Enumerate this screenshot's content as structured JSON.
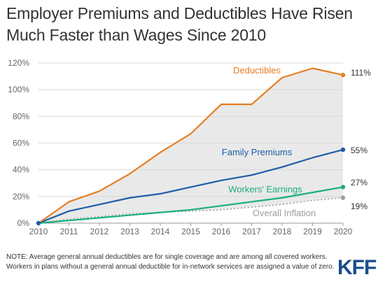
{
  "title": "Employer Premiums and Deductibles Have Risen Much Faster than Wages Since 2010",
  "note": "NOTE: Average general annual deductibles are for single coverage and are among all covered workers. Workers in plans without a general annual deductible for in-network services are assigned a value of zero.",
  "logo_text": "KFF",
  "colors": {
    "deductibles": "#e67e22",
    "family_premiums": "#1f5ea8",
    "workers_earnings": "#1aae7e",
    "overall_inflation": "#9e9e9e",
    "shade": "#e9e9e9",
    "grid": "#d9d9d9"
  },
  "chart_data": {
    "type": "line",
    "title": "",
    "xlabel": "",
    "ylabel": "",
    "x": [
      2010,
      2011,
      2012,
      2013,
      2014,
      2015,
      2016,
      2017,
      2018,
      2019,
      2020
    ],
    "ylim": [
      0,
      120
    ],
    "yticks": [
      "0%",
      "20%",
      "40%",
      "60%",
      "80%",
      "100%",
      "120%"
    ],
    "grid": true,
    "legend": "inline labels",
    "series": [
      {
        "key": "deductibles",
        "name": "Deductibles",
        "end_label": "111%",
        "values": [
          0,
          16,
          24,
          37,
          53,
          67,
          89,
          89,
          109,
          116,
          111
        ]
      },
      {
        "key": "family_premiums",
        "name": "Family Premiums",
        "end_label": "55%",
        "values": [
          0,
          9,
          14,
          19,
          22,
          27,
          32,
          36,
          42,
          49,
          55
        ]
      },
      {
        "key": "workers_earnings",
        "name": "Workers' Earnings",
        "end_label": "27%",
        "values": [
          0,
          2,
          4,
          6,
          8,
          10,
          13,
          16,
          19,
          23,
          27
        ]
      },
      {
        "key": "overall_inflation",
        "name": "Overall Inflation",
        "end_label": "19%",
        "dashed": true,
        "values": [
          0,
          3,
          5,
          7,
          8,
          9,
          10,
          12,
          14,
          17,
          19
        ]
      }
    ]
  }
}
